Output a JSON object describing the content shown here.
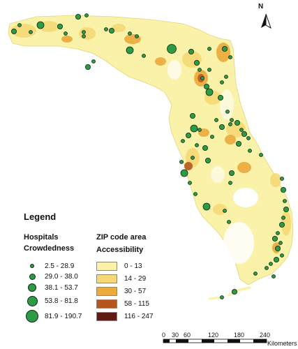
{
  "north_arrow": {
    "label": "N",
    "icon": "north-arrow-icon"
  },
  "legend": {
    "title": "Legend",
    "hospitals": {
      "title": "Hospitals",
      "subtitle": "Crowdedness",
      "symbol_color": "#2e9a44",
      "classes": [
        {
          "label": "2.5 - 28.9",
          "size_rank": 1
        },
        {
          "label": "29.0 - 38.0",
          "size_rank": 2
        },
        {
          "label": "38.1 - 53.7",
          "size_rank": 3
        },
        {
          "label": "53.8 - 81.8",
          "size_rank": 4
        },
        {
          "label": "81.9 - 190.7",
          "size_rank": 5
        }
      ]
    },
    "zip": {
      "title": "ZIP code area",
      "subtitle": "Accessibility",
      "classes": [
        {
          "label": "0 - 13",
          "color": "#fbf2a9"
        },
        {
          "label": "14 - 29",
          "color": "#f6d976"
        },
        {
          "label": "30 - 57",
          "color": "#eaaa3c"
        },
        {
          "label": "58 - 115",
          "color": "#b5561c"
        },
        {
          "label": "116 - 247",
          "color": "#5e1a13"
        }
      ]
    }
  },
  "scale_bar": {
    "ticks": [
      "0",
      "30",
      "60",
      "120",
      "180",
      "240"
    ],
    "unit": "Kilometers"
  }
}
